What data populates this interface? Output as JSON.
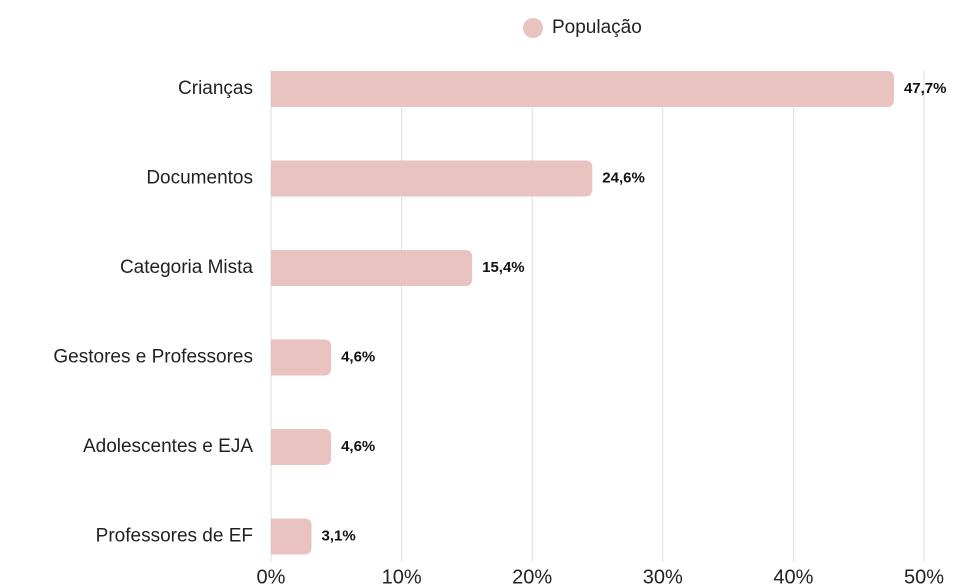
{
  "chart_data": {
    "type": "bar",
    "orientation": "horizontal",
    "categories": [
      "Crianças",
      "Documentos",
      "Categoria Mista",
      "Gestores e Professores",
      "Adolescentes e EJA",
      "Professores de EF"
    ],
    "series": [
      {
        "name": "População",
        "color": "#e8c3bf",
        "values": [
          47.7,
          24.6,
          15.4,
          4.6,
          4.6,
          3.1
        ],
        "value_labels": [
          "47,7%",
          "24,6%",
          "15,4%",
          "4,6%",
          "4,6%",
          "3,1%"
        ]
      }
    ],
    "xlim": [
      0,
      50
    ],
    "xticks": [
      {
        "value": 0,
        "label": "0%"
      },
      {
        "value": 10,
        "label": "10%"
      },
      {
        "value": 20,
        "label": "20%"
      },
      {
        "value": 30,
        "label": "30%"
      },
      {
        "value": 40,
        "label": "40%"
      },
      {
        "value": 50,
        "label": "50%"
      }
    ],
    "grid": true,
    "legend": "top"
  }
}
